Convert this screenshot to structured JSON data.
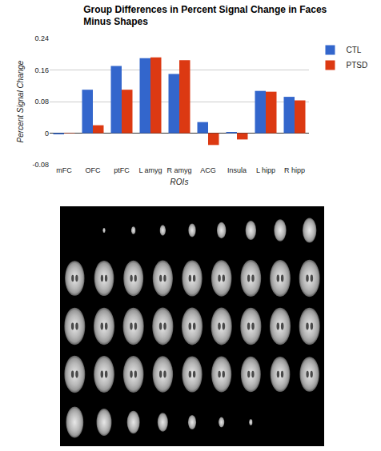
{
  "chart_data": {
    "type": "bar",
    "title": "Group Differences in Percent Signal Change in Faces Minus Shapes",
    "x_label": "ROIs",
    "y_label": "Percent Signal Change",
    "categories": [
      "mFC",
      "OFC",
      "ptFC",
      "L amyg",
      "R amyg",
      "ACG",
      "Insula",
      "L hipp",
      "R hipp"
    ],
    "series": [
      {
        "name": "CTL",
        "color": "#3366cc",
        "values": [
          -0.003,
          0.11,
          0.17,
          0.19,
          0.15,
          0.028,
          0.003,
          0.107,
          0.092
        ]
      },
      {
        "name": "PTSD",
        "color": "#dc3912",
        "values": [
          0.001,
          0.02,
          0.11,
          0.192,
          0.185,
          -0.03,
          -0.016,
          0.105,
          0.083
        ]
      }
    ],
    "ylim": [
      -0.08,
      0.24
    ],
    "yticks": [
      -0.08,
      0,
      0.08,
      0.16,
      0.24
    ],
    "grid": true,
    "legend": "top right"
  }
}
